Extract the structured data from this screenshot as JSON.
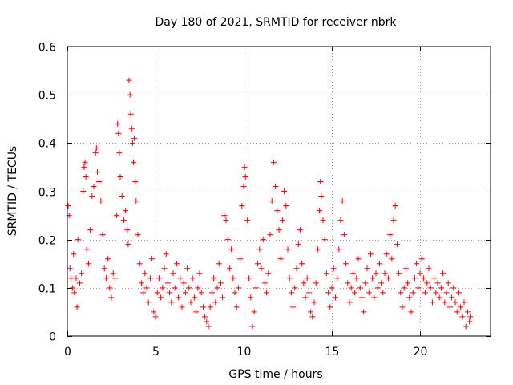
{
  "chart_data": {
    "type": "scatter",
    "title": "Day 180 of 2021, SRMTID for receiver nbrk",
    "xlabel": "GPS time / hours",
    "ylabel": "SRMTID / TECUs",
    "xlim": [
      0,
      24
    ],
    "ylim": [
      0,
      0.6
    ],
    "xticks": [
      0,
      5,
      10,
      15,
      20
    ],
    "xtick_labels": [
      "0",
      "5",
      "10",
      "15",
      "20"
    ],
    "yticks": [
      0,
      0.1,
      0.2,
      0.3,
      0.4,
      0.5,
      0.6
    ],
    "ytick_labels": [
      "0",
      "0.1",
      "0.2",
      "0.3",
      "0.4",
      "0.5",
      "0.6"
    ],
    "grid": true,
    "marker": "+",
    "color": "#ff0000",
    "series": [
      {
        "name": "SRMTID",
        "points": [
          [
            0.05,
            0.27
          ],
          [
            0.1,
            0.25
          ],
          [
            0.15,
            0.14
          ],
          [
            0.2,
            0.12
          ],
          [
            0.3,
            0.1
          ],
          [
            0.35,
            0.17
          ],
          [
            0.4,
            0.09
          ],
          [
            0.5,
            0.12
          ],
          [
            0.55,
            0.06
          ],
          [
            0.6,
            0.2
          ],
          [
            0.7,
            0.11
          ],
          [
            0.8,
            0.13
          ],
          [
            0.9,
            0.3
          ],
          [
            0.95,
            0.35
          ],
          [
            1.0,
            0.36
          ],
          [
            1.05,
            0.33
          ],
          [
            1.1,
            0.18
          ],
          [
            1.2,
            0.15
          ],
          [
            1.3,
            0.22
          ],
          [
            1.4,
            0.29
          ],
          [
            1.5,
            0.31
          ],
          [
            1.6,
            0.38
          ],
          [
            1.65,
            0.39
          ],
          [
            1.7,
            0.34
          ],
          [
            1.8,
            0.32
          ],
          [
            1.9,
            0.28
          ],
          [
            2.0,
            0.21
          ],
          [
            2.1,
            0.14
          ],
          [
            2.2,
            0.12
          ],
          [
            2.3,
            0.16
          ],
          [
            2.4,
            0.1
          ],
          [
            2.5,
            0.08
          ],
          [
            2.6,
            0.13
          ],
          [
            2.7,
            0.12
          ],
          [
            2.8,
            0.25
          ],
          [
            2.85,
            0.44
          ],
          [
            2.9,
            0.42
          ],
          [
            2.95,
            0.38
          ],
          [
            3.0,
            0.33
          ],
          [
            3.1,
            0.29
          ],
          [
            3.2,
            0.24
          ],
          [
            3.3,
            0.26
          ],
          [
            3.4,
            0.22
          ],
          [
            3.45,
            0.19
          ],
          [
            3.5,
            0.53
          ],
          [
            3.55,
            0.5
          ],
          [
            3.6,
            0.46
          ],
          [
            3.65,
            0.43
          ],
          [
            3.7,
            0.4
          ],
          [
            3.75,
            0.36
          ],
          [
            3.8,
            0.41
          ],
          [
            3.85,
            0.32
          ],
          [
            3.9,
            0.28
          ],
          [
            4.0,
            0.21
          ],
          [
            4.1,
            0.15
          ],
          [
            4.2,
            0.11
          ],
          [
            4.3,
            0.09
          ],
          [
            4.4,
            0.13
          ],
          [
            4.5,
            0.1
          ],
          [
            4.6,
            0.07
          ],
          [
            4.7,
            0.12
          ],
          [
            4.8,
            0.16
          ],
          [
            4.9,
            0.05
          ],
          [
            5.0,
            0.04
          ],
          [
            5.1,
            0.09
          ],
          [
            5.2,
            0.12
          ],
          [
            5.3,
            0.08
          ],
          [
            5.4,
            0.1
          ],
          [
            5.5,
            0.14
          ],
          [
            5.6,
            0.17
          ],
          [
            5.7,
            0.11
          ],
          [
            5.8,
            0.09
          ],
          [
            5.9,
            0.07
          ],
          [
            6.0,
            0.13
          ],
          [
            6.1,
            0.1
          ],
          [
            6.2,
            0.15
          ],
          [
            6.3,
            0.08
          ],
          [
            6.4,
            0.12
          ],
          [
            6.5,
            0.06
          ],
          [
            6.6,
            0.11
          ],
          [
            6.7,
            0.09
          ],
          [
            6.8,
            0.14
          ],
          [
            6.9,
            0.1
          ],
          [
            7.0,
            0.07
          ],
          [
            7.1,
            0.12
          ],
          [
            7.2,
            0.08
          ],
          [
            7.3,
            0.05
          ],
          [
            7.4,
            0.1
          ],
          [
            7.5,
            0.13
          ],
          [
            7.6,
            0.09
          ],
          [
            7.7,
            0.06
          ],
          [
            7.8,
            0.04
          ],
          [
            7.9,
            0.03
          ],
          [
            8.0,
            0.02
          ],
          [
            8.1,
            0.06
          ],
          [
            8.2,
            0.09
          ],
          [
            8.3,
            0.12
          ],
          [
            8.4,
            0.07
          ],
          [
            8.5,
            0.1
          ],
          [
            8.6,
            0.15
          ],
          [
            8.7,
            0.11
          ],
          [
            8.8,
            0.08
          ],
          [
            8.9,
            0.25
          ],
          [
            9.0,
            0.24
          ],
          [
            9.1,
            0.2
          ],
          [
            9.2,
            0.14
          ],
          [
            9.3,
            0.18
          ],
          [
            9.4,
            0.12
          ],
          [
            9.5,
            0.09
          ],
          [
            9.6,
            0.06
          ],
          [
            9.7,
            0.1
          ],
          [
            9.8,
            0.16
          ],
          [
            9.9,
            0.27
          ],
          [
            10.0,
            0.31
          ],
          [
            10.05,
            0.35
          ],
          [
            10.1,
            0.33
          ],
          [
            10.2,
            0.24
          ],
          [
            10.3,
            0.12
          ],
          [
            10.4,
            0.08
          ],
          [
            10.5,
            0.02
          ],
          [
            10.6,
            0.05
          ],
          [
            10.7,
            0.1
          ],
          [
            10.8,
            0.15
          ],
          [
            10.9,
            0.18
          ],
          [
            11.0,
            0.14
          ],
          [
            11.1,
            0.2
          ],
          [
            11.2,
            0.11
          ],
          [
            11.3,
            0.09
          ],
          [
            11.4,
            0.13
          ],
          [
            11.5,
            0.21
          ],
          [
            11.6,
            0.28
          ],
          [
            11.7,
            0.36
          ],
          [
            11.8,
            0.31
          ],
          [
            11.9,
            0.26
          ],
          [
            12.0,
            0.22
          ],
          [
            12.1,
            0.16
          ],
          [
            12.2,
            0.24
          ],
          [
            12.3,
            0.3
          ],
          [
            12.4,
            0.27
          ],
          [
            12.5,
            0.18
          ],
          [
            12.6,
            0.12
          ],
          [
            12.7,
            0.09
          ],
          [
            12.8,
            0.06
          ],
          [
            12.9,
            0.1
          ],
          [
            13.0,
            0.14
          ],
          [
            13.1,
            0.19
          ],
          [
            13.2,
            0.22
          ],
          [
            13.3,
            0.15
          ],
          [
            13.4,
            0.11
          ],
          [
            13.5,
            0.08
          ],
          [
            13.6,
            0.12
          ],
          [
            13.7,
            0.09
          ],
          [
            13.8,
            0.05
          ],
          [
            13.9,
            0.04
          ],
          [
            14.0,
            0.07
          ],
          [
            14.1,
            0.11
          ],
          [
            14.2,
            0.18
          ],
          [
            14.3,
            0.26
          ],
          [
            14.35,
            0.32
          ],
          [
            14.4,
            0.29
          ],
          [
            14.5,
            0.24
          ],
          [
            14.6,
            0.2
          ],
          [
            14.7,
            0.13
          ],
          [
            14.8,
            0.09
          ],
          [
            14.9,
            0.06
          ],
          [
            15.0,
            0.1
          ],
          [
            15.1,
            0.14
          ],
          [
            15.2,
            0.08
          ],
          [
            15.3,
            0.12
          ],
          [
            15.4,
            0.18
          ],
          [
            15.5,
            0.24
          ],
          [
            15.6,
            0.28
          ],
          [
            15.7,
            0.21
          ],
          [
            15.8,
            0.15
          ],
          [
            15.9,
            0.11
          ],
          [
            16.0,
            0.07
          ],
          [
            16.1,
            0.1
          ],
          [
            16.2,
            0.13
          ],
          [
            16.3,
            0.09
          ],
          [
            16.4,
            0.12
          ],
          [
            16.5,
            0.16
          ],
          [
            16.6,
            0.1
          ],
          [
            16.7,
            0.08
          ],
          [
            16.8,
            0.05
          ],
          [
            16.9,
            0.11
          ],
          [
            17.0,
            0.14
          ],
          [
            17.1,
            0.09
          ],
          [
            17.2,
            0.17
          ],
          [
            17.3,
            0.12
          ],
          [
            17.4,
            0.08
          ],
          [
            17.5,
            0.13
          ],
          [
            17.6,
            0.1
          ],
          [
            17.7,
            0.15
          ],
          [
            17.8,
            0.11
          ],
          [
            17.9,
            0.09
          ],
          [
            18.0,
            0.13
          ],
          [
            18.1,
            0.17
          ],
          [
            18.2,
            0.12
          ],
          [
            18.3,
            0.21
          ],
          [
            18.4,
            0.16
          ],
          [
            18.5,
            0.24
          ],
          [
            18.6,
            0.27
          ],
          [
            18.7,
            0.19
          ],
          [
            18.8,
            0.13
          ],
          [
            18.9,
            0.09
          ],
          [
            19.0,
            0.06
          ],
          [
            19.1,
            0.1
          ],
          [
            19.2,
            0.14
          ],
          [
            19.3,
            0.11
          ],
          [
            19.4,
            0.08
          ],
          [
            19.5,
            0.05
          ],
          [
            19.6,
            0.09
          ],
          [
            19.7,
            0.12
          ],
          [
            19.8,
            0.15
          ],
          [
            19.9,
            0.1
          ],
          [
            20.0,
            0.13
          ],
          [
            20.1,
            0.16
          ],
          [
            20.2,
            0.12
          ],
          [
            20.3,
            0.09
          ],
          [
            20.4,
            0.11
          ],
          [
            20.5,
            0.14
          ],
          [
            20.6,
            0.1
          ],
          [
            20.7,
            0.07
          ],
          [
            20.8,
            0.12
          ],
          [
            20.9,
            0.09
          ],
          [
            21.0,
            0.11
          ],
          [
            21.1,
            0.08
          ],
          [
            21.2,
            0.1
          ],
          [
            21.3,
            0.13
          ],
          [
            21.4,
            0.07
          ],
          [
            21.5,
            0.09
          ],
          [
            21.6,
            0.11
          ],
          [
            21.7,
            0.06
          ],
          [
            21.8,
            0.08
          ],
          [
            21.9,
            0.1
          ],
          [
            22.0,
            0.07
          ],
          [
            22.1,
            0.05
          ],
          [
            22.2,
            0.09
          ],
          [
            22.3,
            0.06
          ],
          [
            22.4,
            0.04
          ],
          [
            22.5,
            0.07
          ],
          [
            22.6,
            0.02
          ],
          [
            22.7,
            0.05
          ],
          [
            22.8,
            0.03
          ],
          [
            22.85,
            0.04
          ]
        ]
      }
    ]
  }
}
